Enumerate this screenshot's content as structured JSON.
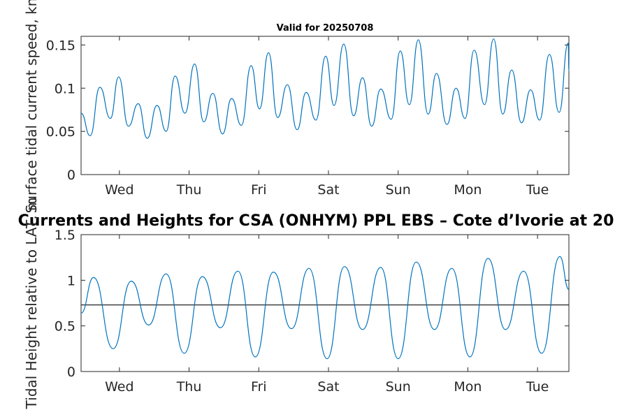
{
  "chart_data": [
    {
      "type": "line",
      "title": "Valid for 20250708",
      "ylabel": "Surface tidal current speed, kn",
      "xlabel": "",
      "xlim": [
        0,
        7
      ],
      "ylim": [
        0,
        0.16
      ],
      "yticks": [
        0,
        0.05,
        0.1,
        0.15
      ],
      "ytick_labels": [
        "0",
        "0.05",
        "0.1",
        "0.15"
      ],
      "xticks": [
        0.55,
        1.55,
        2.55,
        3.55,
        4.55,
        5.55,
        6.55
      ],
      "xtick_labels": [
        "Wed",
        "Thu",
        "Fri",
        "Sat",
        "Sun",
        "Mon",
        "Tue"
      ],
      "grid": false,
      "line_color": "#0072bd",
      "series": [
        {
          "x": [
            0,
            0.13,
            0.27,
            0.42,
            0.54,
            0.68,
            0.82,
            0.95,
            1.09,
            1.22,
            1.35,
            1.49,
            1.63,
            1.76,
            1.89,
            2.03,
            2.16,
            2.3,
            2.44,
            2.56,
            2.69,
            2.82,
            2.96,
            3.1,
            3.23,
            3.37,
            3.51,
            3.63,
            3.77,
            3.91,
            4.04,
            4.17,
            4.3,
            4.45,
            4.58,
            4.71,
            4.84,
            4.98,
            5.1,
            5.25,
            5.38,
            5.51,
            5.64,
            5.79,
            5.92,
            6.05,
            6.18,
            6.32,
            6.45,
            6.58,
            6.72,
            6.86,
            6.99,
            7.0
          ],
          "y": [
            0.071,
            0.045,
            0.101,
            0.065,
            0.113,
            0.056,
            0.082,
            0.042,
            0.08,
            0.05,
            0.114,
            0.071,
            0.128,
            0.061,
            0.094,
            0.047,
            0.088,
            0.057,
            0.126,
            0.076,
            0.141,
            0.066,
            0.104,
            0.052,
            0.095,
            0.063,
            0.137,
            0.08,
            0.151,
            0.068,
            0.112,
            0.056,
            0.099,
            0.064,
            0.143,
            0.081,
            0.156,
            0.07,
            0.117,
            0.058,
            0.1,
            0.065,
            0.144,
            0.081,
            0.157,
            0.07,
            0.121,
            0.06,
            0.098,
            0.063,
            0.139,
            0.072,
            0.152,
            0.12
          ]
        }
      ]
    },
    {
      "type": "line",
      "title": "Currents and Heights for CSA (ONHYM) PPL EBS  – Cote d’Ivorie at 20",
      "ylabel": "Tidal Height relative to LAT, m",
      "xlabel": "",
      "xlim": [
        0,
        7
      ],
      "ylim": [
        0,
        1.5
      ],
      "yticks": [
        0,
        0.5,
        1,
        1.5
      ],
      "ytick_labels": [
        "0",
        "0.5",
        "1",
        "1.5"
      ],
      "xticks": [
        0.55,
        1.55,
        2.55,
        3.55,
        4.55,
        5.55,
        6.55
      ],
      "xtick_labels": [
        "Wed",
        "Thu",
        "Fri",
        "Sat",
        "Sun",
        "Mon",
        "Tue"
      ],
      "grid": false,
      "line_color": "#0072bd",
      "reference_line": 0.73,
      "series": [
        {
          "x": [
            0,
            0.18,
            0.46,
            0.72,
            0.97,
            1.22,
            1.48,
            1.74,
            2.0,
            2.25,
            2.5,
            2.76,
            3.02,
            3.27,
            3.53,
            3.78,
            4.04,
            4.3,
            4.55,
            4.81,
            5.07,
            5.32,
            5.58,
            5.84,
            6.09,
            6.35,
            6.61,
            6.87,
            7.0
          ],
          "y": [
            0.64,
            1.03,
            0.25,
            0.99,
            0.51,
            1.07,
            0.2,
            1.04,
            0.48,
            1.1,
            0.16,
            1.09,
            0.47,
            1.13,
            0.14,
            1.15,
            0.46,
            1.14,
            0.14,
            1.2,
            0.46,
            1.13,
            0.16,
            1.24,
            0.46,
            1.1,
            0.2,
            1.26,
            0.9
          ]
        }
      ]
    }
  ]
}
